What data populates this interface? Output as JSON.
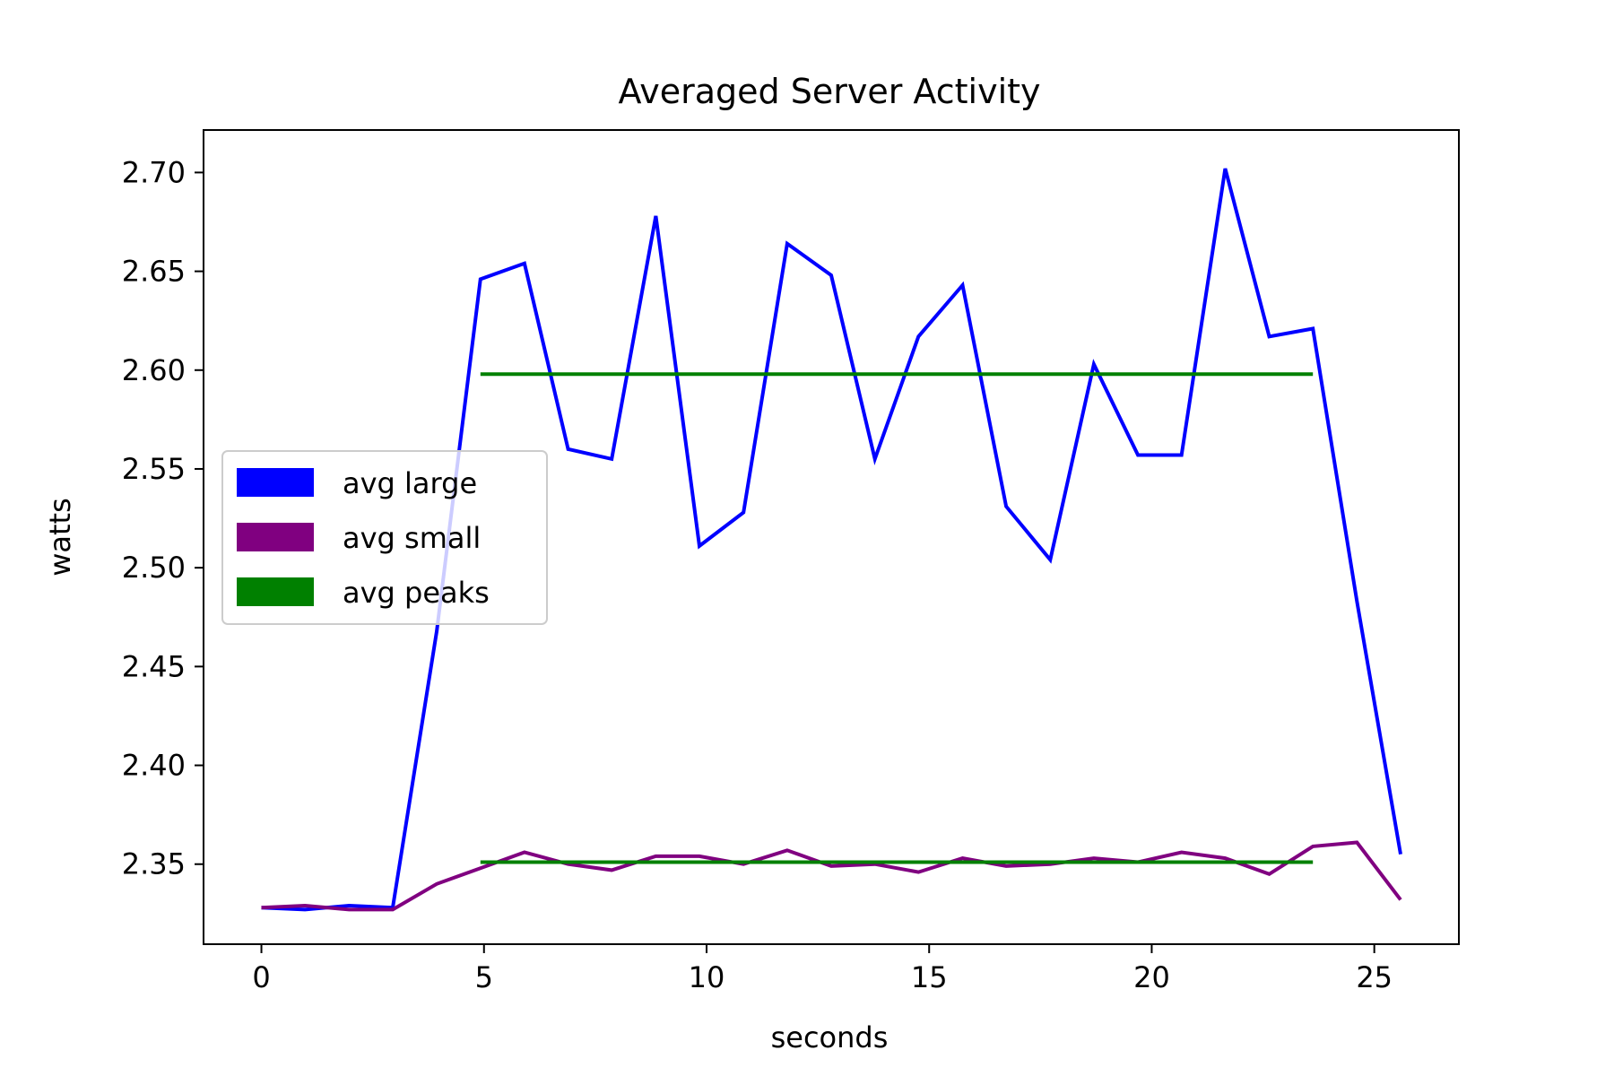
{
  "chart_data": {
    "type": "line",
    "title": "Averaged Server Activity",
    "xlabel": "seconds",
    "ylabel": "watts",
    "xlim": [
      -1.3,
      26.9
    ],
    "ylim": [
      2.3095,
      2.7215
    ],
    "xticks": [
      0,
      5,
      10,
      15,
      20,
      25
    ],
    "xtick_labels": [
      "0",
      "5",
      "10",
      "15",
      "20",
      "25"
    ],
    "yticks": [
      2.35,
      2.4,
      2.45,
      2.5,
      2.55,
      2.6,
      2.65,
      2.7
    ],
    "ytick_labels": [
      "2.35",
      "2.40",
      "2.45",
      "2.50",
      "2.55",
      "2.60",
      "2.65",
      "2.70"
    ],
    "grid": false,
    "legend_position": "center-left",
    "series": [
      {
        "name": "avg large",
        "color": "#0000ff",
        "x": [
          0,
          0.98,
          1.97,
          2.95,
          3.94,
          4.92,
          5.91,
          6.89,
          7.87,
          8.86,
          9.84,
          10.83,
          11.81,
          12.8,
          13.78,
          14.76,
          15.75,
          16.73,
          17.72,
          18.7,
          19.69,
          20.67,
          21.65,
          22.64,
          23.62,
          24.61,
          25.59
        ],
        "y": [
          2.328,
          2.327,
          2.329,
          2.328,
          2.468,
          2.646,
          2.654,
          2.56,
          2.555,
          2.678,
          2.511,
          2.528,
          2.664,
          2.648,
          2.555,
          2.617,
          2.643,
          2.531,
          2.504,
          2.603,
          2.557,
          2.557,
          2.702,
          2.617,
          2.621,
          2.483,
          2.355
        ]
      },
      {
        "name": "avg small",
        "color": "#800080",
        "x": [
          0,
          0.98,
          1.97,
          2.95,
          3.94,
          4.92,
          5.91,
          6.89,
          7.87,
          8.86,
          9.84,
          10.83,
          11.81,
          12.8,
          13.78,
          14.76,
          15.75,
          16.73,
          17.72,
          18.7,
          19.69,
          20.67,
          21.65,
          22.64,
          23.62,
          24.61,
          25.59
        ],
        "y": [
          2.328,
          2.329,
          2.327,
          2.327,
          2.34,
          2.348,
          2.356,
          2.35,
          2.347,
          2.354,
          2.354,
          2.35,
          2.357,
          2.349,
          2.35,
          2.346,
          2.353,
          2.349,
          2.35,
          2.353,
          2.351,
          2.356,
          2.353,
          2.345,
          2.359,
          2.361,
          2.332
        ]
      },
      {
        "name": "avg peaks",
        "color": "#008000",
        "segments": [
          {
            "x": [
              4.92,
              23.62
            ],
            "y": [
              2.598,
              2.598
            ]
          },
          {
            "x": [
              4.92,
              23.62
            ],
            "y": [
              2.351,
              2.351
            ]
          }
        ]
      }
    ]
  }
}
